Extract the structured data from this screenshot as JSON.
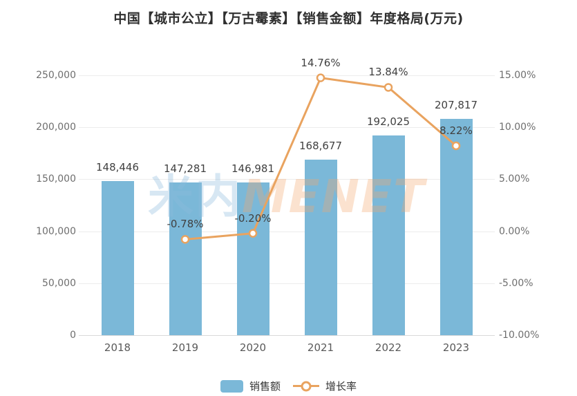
{
  "title": "中国【城市公立】【万古霉素】【销售金额】年度格局(万元)",
  "watermark": {
    "cn": "米内",
    "en": "MENET"
  },
  "colors": {
    "bar": "#7BB8D8",
    "line": "#E9A35F",
    "marker_fill": "#FFFFFF",
    "data_label": "#404040",
    "axis_text": "#6E6E6E",
    "gridline": "#ECECEC",
    "zero_line": "#D9D9D9"
  },
  "legend": {
    "items": [
      {
        "label": "销售额",
        "type": "bar"
      },
      {
        "label": "增长率",
        "type": "line"
      }
    ]
  },
  "chart_data": {
    "type": "bar+line",
    "title": "中国【城市公立】【万古霉素】【销售金额】年度格局(万元)",
    "categories": [
      "2018",
      "2019",
      "2020",
      "2021",
      "2022",
      "2023"
    ],
    "series": [
      {
        "name": "销售额",
        "type": "bar",
        "axis": "left",
        "values": [
          148446,
          147281,
          146981,
          168677,
          192025,
          207817
        ],
        "labels": [
          "148,446",
          "147,281",
          "146,981",
          "168,677",
          "192,025",
          "207,817"
        ]
      },
      {
        "name": "增长率",
        "type": "line",
        "axis": "right",
        "values": [
          null,
          -0.78,
          -0.2,
          14.76,
          13.84,
          8.22
        ],
        "labels": [
          "",
          "-0.78%",
          "-0.20%",
          "14.76%",
          "13.84%",
          "8.22%"
        ]
      }
    ],
    "left_axis": {
      "min": 0,
      "max": 250000,
      "ticks": [
        "250,000",
        "200,000",
        "150,000",
        "100,000",
        "50,000",
        "0"
      ]
    },
    "right_axis": {
      "min": -10,
      "max": 15,
      "ticks": [
        "15.00%",
        "10.00%",
        "5.00%",
        "0.00%",
        "-5.00%",
        "-10.00%"
      ]
    },
    "grid": true,
    "legend_position": "bottom"
  }
}
